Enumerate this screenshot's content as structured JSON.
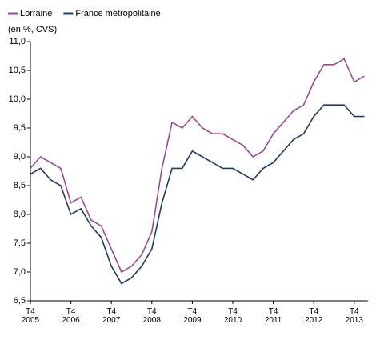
{
  "chart_data": {
    "type": "line",
    "subtitle": "(en %, CVS)",
    "categories": [
      "T4 2005",
      null,
      null,
      null,
      "T4 2006",
      null,
      null,
      null,
      "T4 2007",
      null,
      null,
      null,
      "T4 2008",
      null,
      null,
      null,
      "T4 2009",
      null,
      null,
      null,
      "T4 2010",
      null,
      null,
      null,
      "T4 2011",
      null,
      null,
      null,
      "T4 2012",
      null,
      null,
      null,
      "T4 2013",
      null
    ],
    "series": [
      {
        "name": "Lorraine",
        "color": "#9b4a91",
        "values": [
          8.8,
          9.0,
          8.9,
          8.8,
          8.2,
          8.3,
          7.9,
          7.8,
          7.4,
          7.0,
          7.1,
          7.3,
          7.7,
          8.8,
          9.6,
          9.5,
          9.7,
          9.5,
          9.4,
          9.4,
          9.3,
          9.2,
          9.0,
          9.1,
          9.4,
          9.6,
          9.8,
          9.9,
          10.3,
          10.6,
          10.6,
          10.7,
          10.3,
          10.4
        ]
      },
      {
        "name": "France métropolitaine",
        "color": "#1f3b66",
        "values": [
          8.7,
          8.8,
          8.6,
          8.5,
          8.0,
          8.1,
          7.8,
          7.6,
          7.1,
          6.8,
          6.9,
          7.1,
          7.4,
          8.2,
          8.8,
          8.8,
          9.1,
          9.0,
          8.9,
          8.8,
          8.8,
          8.7,
          8.6,
          8.8,
          8.9,
          9.1,
          9.3,
          9.4,
          9.7,
          9.9,
          9.9,
          9.9,
          9.7,
          9.7
        ]
      }
    ],
    "ylim": [
      6.5,
      11.0
    ],
    "yticks": [
      {
        "value": 6.5,
        "label": "6,5"
      },
      {
        "value": 7.0,
        "label": "7,0"
      },
      {
        "value": 7.5,
        "label": "7,5"
      },
      {
        "value": 8.0,
        "label": "8,0"
      },
      {
        "value": 8.5,
        "label": "8,5"
      },
      {
        "value": 9.0,
        "label": "9,0"
      },
      {
        "value": 9.5,
        "label": "9,5"
      },
      {
        "value": 10.0,
        "label": "10,0"
      },
      {
        "value": 10.5,
        "label": "10,5"
      },
      {
        "value": 11.0,
        "label": "11,0"
      }
    ],
    "grid": false,
    "legend": "top-left"
  }
}
